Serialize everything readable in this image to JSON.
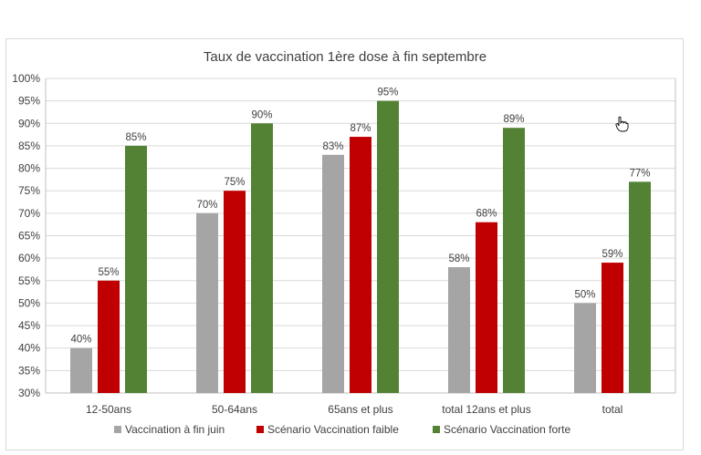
{
  "chart_data": {
    "type": "bar",
    "title": "Taux de vaccination 1ère dose à fin septembre",
    "categories": [
      "12-50ans",
      "50-64ans",
      "65ans et plus",
      "total 12ans et plus",
      "total"
    ],
    "series": [
      {
        "name": "Vaccination à fin juin",
        "color": "#a5a5a5",
        "values": [
          40,
          70,
          83,
          58,
          50
        ]
      },
      {
        "name": "Scénario Vaccination faible",
        "color": "#c00000",
        "values": [
          55,
          75,
          87,
          68,
          59
        ]
      },
      {
        "name": "Scénario Vaccination forte",
        "color": "#548235",
        "values": [
          85,
          90,
          95,
          89,
          77
        ]
      }
    ],
    "ylim": [
      30,
      100
    ],
    "yticks": [
      30,
      35,
      40,
      45,
      50,
      55,
      60,
      65,
      70,
      75,
      80,
      85,
      90,
      95,
      100
    ],
    "value_suffix": "%",
    "grid": true,
    "legend_position": "bottom"
  },
  "cursor_icon": "hand-pointer-icon"
}
